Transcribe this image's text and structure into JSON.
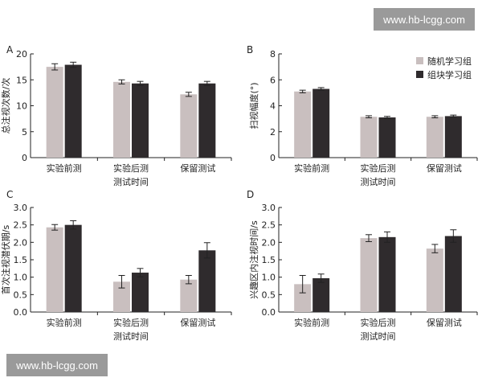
{
  "watermarks": {
    "top": "www.hb-lcgg.com",
    "bottom": "www.hb-lcgg.com"
  },
  "colors": {
    "random_group": "#c9bfbf",
    "block_group": "#2f2b2d",
    "axis": "#222222",
    "text": "#222222"
  },
  "legend": {
    "random_group": "随机学习组",
    "block_group": "组块学习组"
  },
  "chart_data": [
    {
      "panel": "A",
      "type": "bar",
      "ylabel": "总注视次数/次",
      "ylim": [
        0,
        20
      ],
      "yticks": [
        0,
        5,
        10,
        15,
        20
      ],
      "categories": [
        [
          "实验前测"
        ],
        [
          "实验后测",
          "测试时间"
        ],
        [
          "保留测试"
        ]
      ],
      "series": [
        {
          "name": "随机学习组",
          "values": [
            17.5,
            14.6,
            12.2
          ],
          "errors": [
            0.6,
            0.4,
            0.4
          ]
        },
        {
          "name": "组块学习组",
          "values": [
            17.9,
            14.3,
            14.3
          ],
          "errors": [
            0.5,
            0.4,
            0.4
          ]
        }
      ]
    },
    {
      "panel": "B",
      "type": "bar",
      "ylabel": "扫视幅度(°)",
      "ylim": [
        0,
        8
      ],
      "yticks": [
        0,
        2,
        4,
        6,
        8
      ],
      "categories": [
        [
          "实验前测"
        ],
        [
          "实验后测",
          "测试时间"
        ],
        [
          "保留测试"
        ]
      ],
      "legend_position": "top-right",
      "series": [
        {
          "name": "随机学习组",
          "values": [
            5.1,
            3.15,
            3.15
          ],
          "errors": [
            0.1,
            0.08,
            0.08
          ]
        },
        {
          "name": "组块学习组",
          "values": [
            5.3,
            3.1,
            3.2
          ],
          "errors": [
            0.1,
            0.08,
            0.08
          ]
        }
      ]
    },
    {
      "panel": "C",
      "type": "bar",
      "ylabel": "首次注视潜伏期/s",
      "ylim": [
        0,
        3.0
      ],
      "yticks": [
        0,
        0.5,
        1.0,
        1.5,
        2.0,
        2.5,
        3.0
      ],
      "categories": [
        [
          "实验前测"
        ],
        [
          "实验后测",
          "测试时间"
        ],
        [
          "保留测试"
        ]
      ],
      "series": [
        {
          "name": "随机学习组",
          "values": [
            2.43,
            0.87,
            0.93
          ],
          "errors": [
            0.08,
            0.18,
            0.12
          ]
        },
        {
          "name": "组块学习组",
          "values": [
            2.5,
            1.13,
            1.77
          ],
          "errors": [
            0.12,
            0.12,
            0.22
          ]
        }
      ]
    },
    {
      "panel": "D",
      "type": "bar",
      "ylabel": "兴趣区内注视时间/s",
      "ylim": [
        0,
        3.0
      ],
      "yticks": [
        0,
        0.5,
        1.0,
        1.5,
        2.0,
        2.5,
        3.0
      ],
      "categories": [
        [
          "实验前测"
        ],
        [
          "实验后测",
          "测试时间"
        ],
        [
          "保留测试"
        ]
      ],
      "series": [
        {
          "name": "随机学习组",
          "values": [
            0.8,
            2.12,
            1.82
          ],
          "errors": [
            0.25,
            0.1,
            0.12
          ]
        },
        {
          "name": "组块学习组",
          "values": [
            0.97,
            2.15,
            2.18
          ],
          "errors": [
            0.12,
            0.15,
            0.18
          ]
        }
      ]
    }
  ]
}
